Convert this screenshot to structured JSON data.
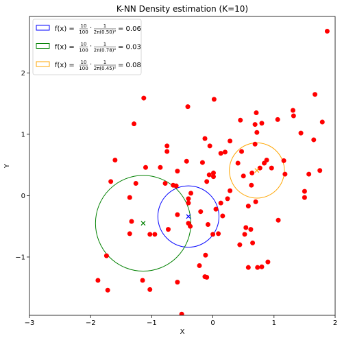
{
  "chart_data": {
    "type": "scatter",
    "title": "K-NN Density estimation (K=10)",
    "xlabel": "X",
    "ylabel": "Y",
    "xlim": [
      -3,
      2
    ],
    "ylim": [
      -1.95,
      2.92
    ],
    "xticks": [
      -3,
      -2,
      -1,
      0,
      1,
      2
    ],
    "yticks": [
      -1,
      0,
      1,
      2
    ],
    "xtick_labels": [
      "−3",
      "−2",
      "−1",
      "0",
      "1",
      "2"
    ],
    "ytick_labels": [
      "−1",
      "0",
      "1",
      "2"
    ],
    "grid": false,
    "legend_position": "upper left",
    "point_color": "#ff0000",
    "points": [
      [
        -1.13,
        1.59
      ],
      [
        -1.29,
        1.17
      ],
      [
        -0.41,
        1.45
      ],
      [
        0.02,
        1.57
      ],
      [
        -1.6,
        0.58
      ],
      [
        -1.67,
        0.23
      ],
      [
        -1.1,
        0.46
      ],
      [
        -0.86,
        0.46
      ],
      [
        -0.75,
        0.81
      ],
      [
        -0.75,
        0.72
      ],
      [
        -0.43,
        0.56
      ],
      [
        -0.58,
        0.4
      ],
      [
        -0.17,
        0.54
      ],
      [
        -0.13,
        0.93
      ],
      [
        -0.05,
        0.81
      ],
      [
        0.13,
        0.69
      ],
      [
        0.2,
        0.71
      ],
      [
        0.28,
        0.89
      ],
      [
        -0.78,
        0.2
      ],
      [
        -0.65,
        0.17
      ],
      [
        -0.6,
        0.16
      ],
      [
        -0.1,
        0.23
      ],
      [
        -0.06,
        0.34
      ],
      [
        0.01,
        0.37
      ],
      [
        0.01,
        0.31
      ],
      [
        -0.36,
        0.04
      ],
      [
        -0.4,
        -0.05
      ],
      [
        -0.4,
        -0.12
      ],
      [
        -1.26,
        0.2
      ],
      [
        -1.36,
        -0.03
      ],
      [
        0.13,
        -0.12
      ],
      [
        0.05,
        -0.22
      ],
      [
        -0.2,
        -0.26
      ],
      [
        0.28,
        0.08
      ],
      [
        0.24,
        -0.05
      ],
      [
        -0.58,
        -0.31
      ],
      [
        0.16,
        -0.33
      ],
      [
        -0.4,
        -0.45
      ],
      [
        -0.37,
        -0.5
      ],
      [
        -0.08,
        -0.47
      ],
      [
        -1.33,
        -0.42
      ],
      [
        -1.03,
        -0.63
      ],
      [
        -0.95,
        -0.63
      ],
      [
        -0.73,
        -0.55
      ],
      [
        -1.36,
        -0.62
      ],
      [
        0.0,
        -0.63
      ],
      [
        0.09,
        -0.62
      ],
      [
        0.45,
        1.23
      ],
      [
        0.69,
        1.16
      ],
      [
        0.71,
        1.35
      ],
      [
        0.72,
        1.03
      ],
      [
        0.8,
        1.18
      ],
      [
        1.06,
        1.24
      ],
      [
        1.31,
        1.39
      ],
      [
        1.32,
        1.3
      ],
      [
        1.44,
        1.02
      ],
      [
        1.65,
        0.91
      ],
      [
        1.67,
        1.65
      ],
      [
        1.79,
        1.2
      ],
      [
        1.87,
        2.68
      ],
      [
        0.47,
        0.72
      ],
      [
        0.69,
        0.84
      ],
      [
        0.41,
        0.53
      ],
      [
        0.5,
        0.32
      ],
      [
        0.64,
        0.37
      ],
      [
        0.77,
        0.45
      ],
      [
        0.84,
        0.53
      ],
      [
        0.88,
        0.58
      ],
      [
        0.96,
        0.45
      ],
      [
        1.16,
        0.57
      ],
      [
        1.18,
        0.35
      ],
      [
        0.63,
        0.17
      ],
      [
        0.58,
        -0.17
      ],
      [
        0.7,
        -0.1
      ],
      [
        1.5,
        0.07
      ],
      [
        1.5,
        -0.03
      ],
      [
        1.57,
        0.35
      ],
      [
        1.75,
        0.41
      ],
      [
        0.54,
        -0.52
      ],
      [
        0.52,
        -0.63
      ],
      [
        0.62,
        -0.55
      ],
      [
        0.65,
        -0.77
      ],
      [
        0.44,
        -0.8
      ],
      [
        1.07,
        -0.4
      ],
      [
        -0.22,
        -1.14
      ],
      [
        -0.12,
        -0.97
      ],
      [
        -0.1,
        -1.33
      ],
      [
        -0.13,
        -1.32
      ],
      [
        -1.74,
        -0.98
      ],
      [
        -1.88,
        -1.38
      ],
      [
        -1.72,
        -1.54
      ],
      [
        -1.15,
        -1.38
      ],
      [
        -1.03,
        -1.53
      ],
      [
        -0.58,
        -1.41
      ],
      [
        -0.51,
        -1.93
      ],
      [
        0.58,
        -1.17
      ],
      [
        0.73,
        -1.17
      ],
      [
        0.8,
        -1.16
      ],
      [
        0.9,
        -1.08
      ]
    ],
    "markers": [
      {
        "x": -0.4,
        "y": -0.34,
        "color": "#0000ff"
      },
      {
        "x": -1.14,
        "y": -0.45,
        "color": "#008000"
      },
      {
        "x": 0.72,
        "y": 0.41,
        "color": "#ffa500"
      }
    ],
    "circles": [
      {
        "cx": -0.4,
        "cy": -0.34,
        "r": 0.5,
        "color": "#0000ff"
      },
      {
        "cx": -1.14,
        "cy": -0.45,
        "r": 0.78,
        "color": "#008000"
      },
      {
        "cx": 0.72,
        "cy": 0.41,
        "r": 0.45,
        "color": "#ffa500"
      }
    ],
    "legend": [
      {
        "color": "#0000ff",
        "prefix": "f(x) = ",
        "num1": "10",
        "den1": "100",
        "num2": "1",
        "den2": "2π(0.50)²",
        "result": "= 0.06"
      },
      {
        "color": "#008000",
        "prefix": "f(x) = ",
        "num1": "10",
        "den1": "100",
        "num2": "1",
        "den2": "2π(0.78)²",
        "result": "= 0.03"
      },
      {
        "color": "#ffa500",
        "prefix": "f(x) = ",
        "num1": "10",
        "den1": "100",
        "num2": "1",
        "den2": "2π(0.45)²",
        "result": "= 0.08"
      }
    ]
  }
}
